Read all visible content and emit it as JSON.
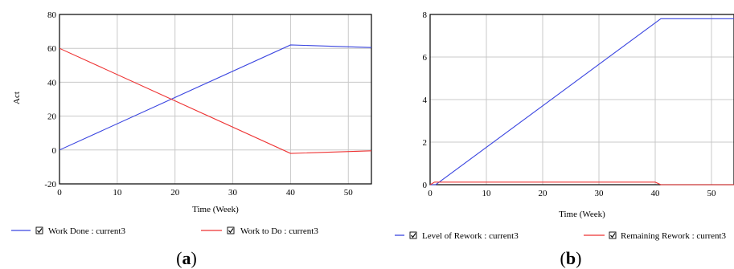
{
  "colors": {
    "blue": "#3b46e0",
    "red": "#ee3333",
    "grid": "#c8c8c8",
    "axis": "#000000"
  },
  "chart_data": [
    {
      "type": "line",
      "panel_label": "a",
      "title": "",
      "xlabel": "Time (Week)",
      "ylabel": "Act",
      "xlim": [
        0,
        54
      ],
      "ylim": [
        -20,
        80
      ],
      "xticks": [
        0,
        10,
        20,
        30,
        40,
        50
      ],
      "yticks": [
        -20,
        0,
        20,
        40,
        60,
        80
      ],
      "grid": true,
      "legend_position": "bottom",
      "series": [
        {
          "name": "Work Done : current3",
          "color": "blue",
          "x": [
            0,
            40,
            54
          ],
          "y": [
            0,
            62,
            60.5
          ]
        },
        {
          "name": "Work to Do : current3",
          "color": "red",
          "x": [
            0,
            40,
            54
          ],
          "y": [
            60,
            -2,
            -0.5
          ]
        }
      ]
    },
    {
      "type": "line",
      "panel_label": "b",
      "title": "",
      "xlabel": "Time (Week)",
      "ylabel": "",
      "xlim": [
        0,
        54
      ],
      "ylim": [
        0,
        8
      ],
      "xticks": [
        0,
        10,
        20,
        30,
        40,
        50
      ],
      "yticks": [
        0,
        2,
        4,
        6,
        8
      ],
      "grid": true,
      "legend_position": "bottom",
      "series": [
        {
          "name": "Level of Rework : current3",
          "color": "blue",
          "x": [
            0,
            1,
            41,
            54
          ],
          "y": [
            0,
            0,
            7.8,
            7.8
          ]
        },
        {
          "name": "Remaining Rework : current3",
          "color": "red",
          "x": [
            0,
            0.8,
            40,
            41,
            54
          ],
          "y": [
            0,
            0.12,
            0.12,
            0,
            0
          ]
        }
      ]
    }
  ]
}
